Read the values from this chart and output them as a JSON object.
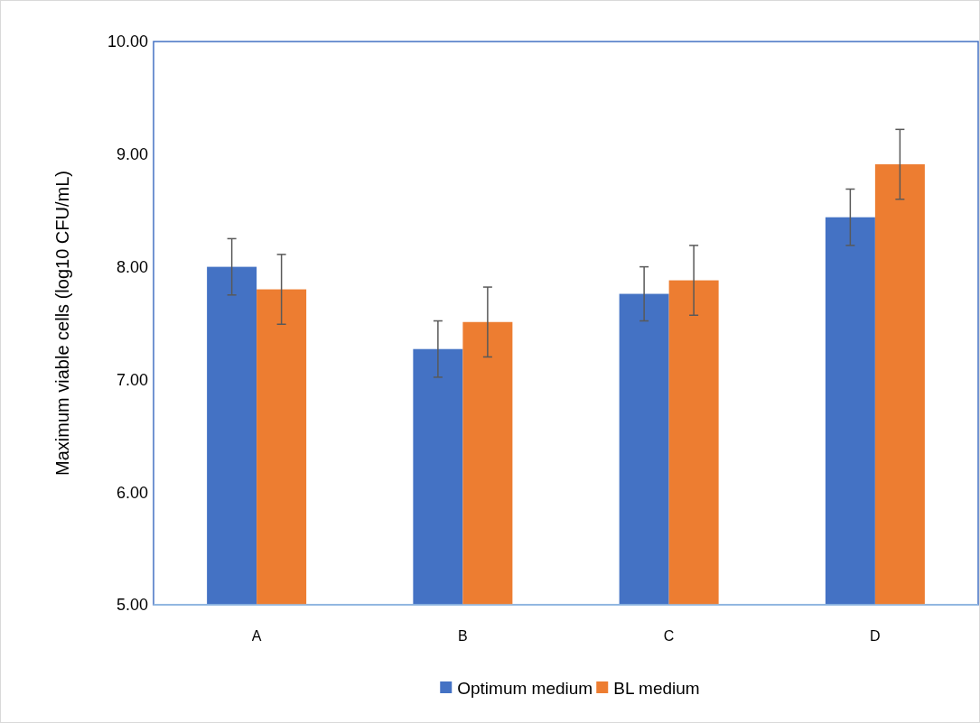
{
  "chart_data": {
    "type": "bar",
    "ylabel": "Maximum viable cells (log10 CFU/mL)",
    "categories": [
      "A",
      "B",
      "C",
      "D"
    ],
    "series": [
      {
        "name": "Optimum medium",
        "color": "#4472c4",
        "values": [
          8.0,
          7.27,
          7.76,
          8.44
        ],
        "errors": [
          0.25,
          0.25,
          0.24,
          0.25
        ]
      },
      {
        "name": "BL medium",
        "color": "#ed7d31",
        "values": [
          7.8,
          7.51,
          7.88,
          8.91
        ],
        "errors": [
          0.31,
          0.31,
          0.31,
          0.31
        ]
      }
    ],
    "ylim": [
      5,
      10
    ],
    "yticks": [
      {
        "value": 5,
        "label": "5.00"
      },
      {
        "value": 6,
        "label": "6.00"
      },
      {
        "value": 7,
        "label": "7.00"
      },
      {
        "value": 8,
        "label": "8.00"
      },
      {
        "value": 9,
        "label": "9.00"
      },
      {
        "value": 10,
        "label": "10.00"
      }
    ],
    "legend": "bottom"
  }
}
